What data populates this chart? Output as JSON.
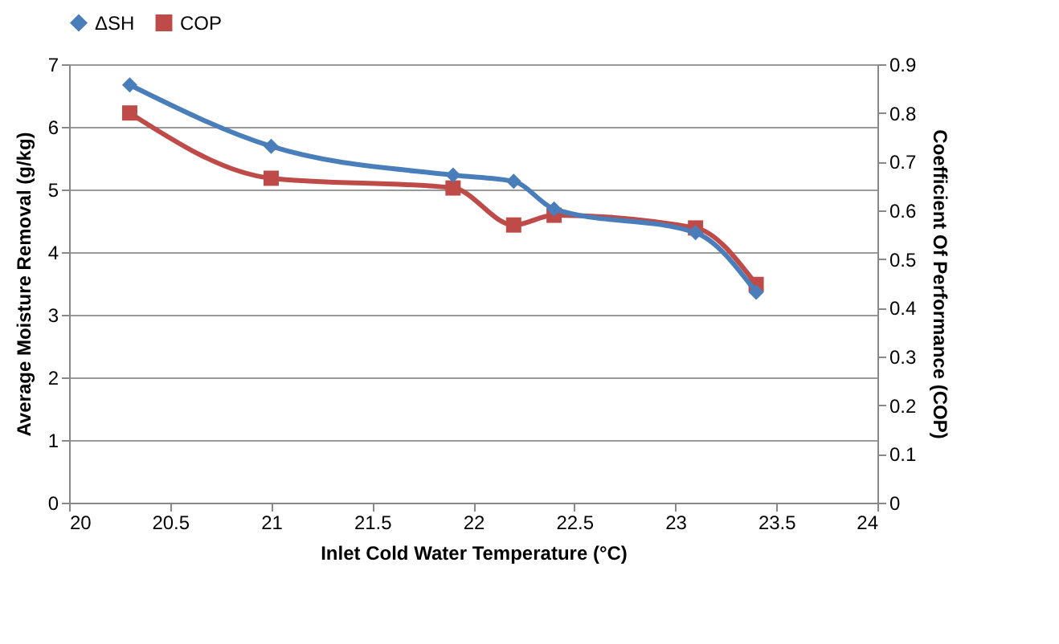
{
  "chart_data": {
    "type": "line",
    "xlabel": "Inlet Cold Water  Temperature (°C)",
    "ylabel": "Average Moisture Removal (g/kg)",
    "y2label": "Coefficient Of Performance (COP)",
    "x": [
      20.3,
      21,
      21.9,
      22.2,
      22.4,
      23.1,
      23.4
    ],
    "series": [
      {
        "name": "ΔSH",
        "color": "#4a7ebb",
        "marker": "diamond",
        "values": [
          6.67,
          5.69,
          5.23,
          5.13,
          4.69,
          4.31,
          3.36
        ]
      },
      {
        "name": "COP",
        "color": "#be4b48",
        "marker": "square",
        "axis": "y2",
        "values": [
          0.8,
          0.666,
          0.646,
          0.57,
          0.59,
          0.564,
          0.448
        ]
      }
    ],
    "xlim": [
      20,
      24
    ],
    "xticks": [
      20,
      20.5,
      21,
      21.5,
      22,
      22.5,
      23,
      23.5,
      24
    ],
    "ylim": [
      0,
      7
    ],
    "yticks": [
      0,
      1,
      2,
      3,
      4,
      5,
      6,
      7
    ],
    "y2lim": [
      0,
      0.9
    ],
    "y2ticks": [
      0,
      0.1,
      0.2,
      0.3,
      0.4,
      0.5,
      0.6,
      0.7,
      0.8,
      0.9
    ],
    "grid": "y",
    "legend": "top",
    "line_style": "solid"
  }
}
